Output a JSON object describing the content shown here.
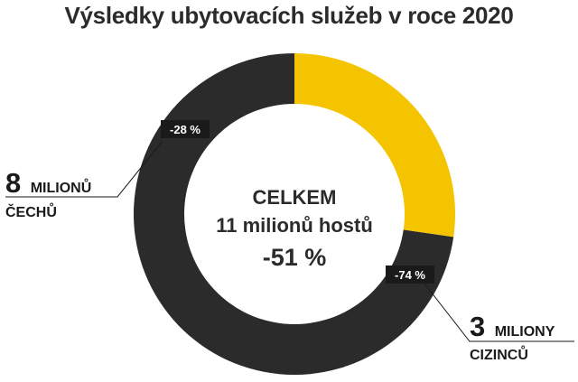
{
  "chart_data": {
    "type": "pie",
    "title": "Výsledky ubytovacích služeb v roce 2020",
    "center": {
      "line1": "CELKEM",
      "line2": "11 milionů hostů",
      "line3": "-51 %"
    },
    "slices": [
      {
        "key": "cechu",
        "value": 8,
        "big": "8",
        "unit": "MILIONŮ",
        "sub": "ČECHŮ",
        "change": "-28 %",
        "color": "#2b2b2b"
      },
      {
        "key": "cizincu",
        "value": 3,
        "big": "3",
        "unit": "MILIONY",
        "sub": "CIZINCŮ",
        "change": "-74 %",
        "color": "#f5c400"
      }
    ]
  }
}
